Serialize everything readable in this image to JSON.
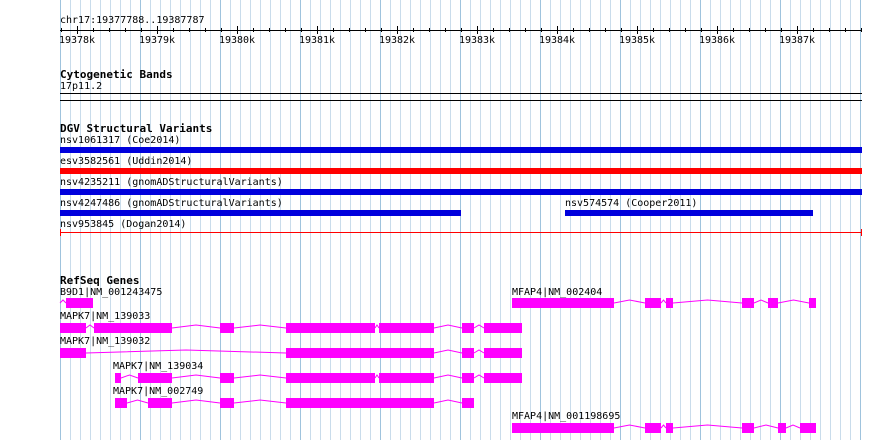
{
  "ruler": {
    "range_label": "chr17:19377788..19387787",
    "ticks": [
      "19378k",
      "19379k",
      "19380k",
      "19381k",
      "19382k",
      "19383k",
      "19384k",
      "19385k",
      "19386k",
      "19387k"
    ]
  },
  "cytobands": {
    "title": "Cytogenetic Bands",
    "band": "17p11.2"
  },
  "dgv": {
    "title": "DGV Structural Variants",
    "variants": [
      {
        "label": "nsv1061317 (Coe2014)",
        "color": "#0000dd"
      },
      {
        "label": "esv3582561 (Uddin2014)",
        "color": "#ff0000"
      },
      {
        "label": "nsv4235211 (gnomADStructuralVariants)",
        "color": "#0000dd"
      },
      {
        "label": "nsv4247486 (gnomADStructuralVariants)",
        "color": "#0000dd"
      },
      {
        "label": "nsv574574 (Cooper2011)",
        "color": "#0000dd"
      },
      {
        "label": "nsv953845 (Dogan2014)",
        "color": "#ff0000"
      }
    ]
  },
  "refseq": {
    "title": "RefSeq Genes",
    "gene_color": "#ff00ff",
    "transcripts": [
      {
        "label": "B9D1|NM_001243475"
      },
      {
        "label": "MFAP4|NM_002404"
      },
      {
        "label": "MAPK7|NM_139033"
      },
      {
        "label": "MAPK7|NM_139032"
      },
      {
        "label": "MAPK7|NM_139034"
      },
      {
        "label": "MAPK7|NM_002749"
      },
      {
        "label": "MFAP4|NM_001198695"
      }
    ]
  }
}
